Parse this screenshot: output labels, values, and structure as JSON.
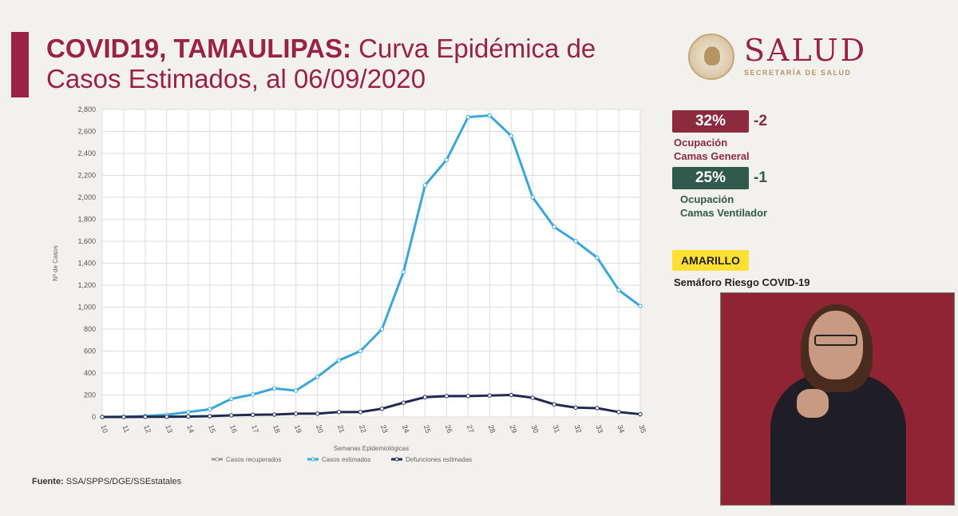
{
  "header": {
    "title_bold": "COVID19, TAMAULIPAS:",
    "title_rest": " Curva Epidémica de",
    "title_line2": "Casos Estimados, al 06/09/2020"
  },
  "logo": {
    "word": "SALUD",
    "subtitle": "SECRETARÍA DE SALUD"
  },
  "indicators": {
    "general": {
      "value": "32%",
      "delta": "-2",
      "label_line1": "Ocupación",
      "label_line2": "Camas General"
    },
    "ventilador": {
      "value": "25%",
      "delta": "-1",
      "label_line1": "Ocupación",
      "label_line2": "Camas Ventilador"
    },
    "semaforo_color": "AMARILLO",
    "semaforo_label": "Semáforo Riesgo COVID-19"
  },
  "source": {
    "label": "Fuente:",
    "text": " SSA/SPPS/DGE/SSEstatales"
  },
  "colors": {
    "brand": "#9b2247",
    "brand_dark": "#8c2a3f",
    "teal": "#2f5a4c",
    "estimados": "#3aa7dc",
    "defunciones": "#1e2a52",
    "recuperados": "#999999",
    "yellow": "#ffe033"
  },
  "chart_data": {
    "type": "line",
    "title": "",
    "xlabel": "Semanas Epidemiológicas",
    "ylabel": "Nº de Casos",
    "ylim": [
      0,
      2800
    ],
    "yticks": [
      0,
      200,
      400,
      600,
      800,
      1000,
      1200,
      1400,
      1600,
      1800,
      2000,
      2200,
      2400,
      2600,
      2800
    ],
    "ytick_labels": [
      "0",
      "200",
      "400",
      "600",
      "800",
      "1,000",
      "1,200",
      "1,400",
      "1,600",
      "1,800",
      "2,000",
      "2,200",
      "2,400",
      "2,600",
      "2,800"
    ],
    "categories": [
      "10",
      "11",
      "12",
      "13",
      "14",
      "15",
      "16",
      "17",
      "18",
      "19",
      "20",
      "21",
      "22",
      "23",
      "24",
      "25",
      "26",
      "27",
      "28",
      "29",
      "30",
      "31",
      "32",
      "33",
      "34",
      "35"
    ],
    "legend": [
      "Casos recuperados",
      "Casos estimados",
      "Defunciones estimadas"
    ],
    "series": [
      {
        "name": "Casos estimados",
        "values": [
          0,
          2,
          8,
          20,
          45,
          70,
          165,
          205,
          260,
          240,
          365,
          515,
          600,
          800,
          1320,
          2110,
          2340,
          2730,
          2745,
          2560,
          2000,
          1730,
          1600,
          1450,
          1155,
          1010
        ]
      },
      {
        "name": "Defunciones estimadas",
        "values": [
          0,
          0,
          1,
          2,
          4,
          7,
          15,
          20,
          22,
          30,
          30,
          45,
          45,
          75,
          130,
          180,
          190,
          190,
          195,
          200,
          175,
          115,
          85,
          80,
          45,
          25
        ]
      }
    ]
  }
}
